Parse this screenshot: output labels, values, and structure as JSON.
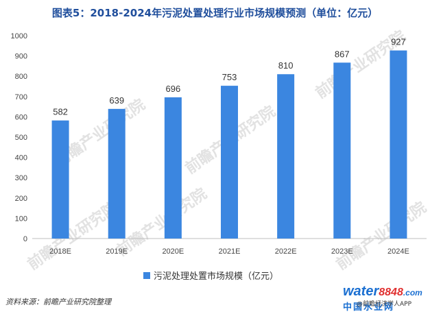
{
  "chart_data": {
    "type": "bar",
    "title": "图表5：2018-2024年污泥处置处理行业市场规模预测（单位：亿元）",
    "categories": [
      "2018E",
      "2019E",
      "2020E",
      "2021E",
      "2022E",
      "2023E",
      "2024E"
    ],
    "series": [
      {
        "name": "污泥处理处置市场规模（亿元）",
        "values": [
          582,
          639,
          696,
          753,
          810,
          867,
          927
        ]
      }
    ],
    "ylim": [
      0,
      1000
    ],
    "yticks": [
      0,
      100,
      200,
      300,
      400,
      500,
      600,
      700,
      800,
      900,
      1000
    ],
    "bar_color": "#3b86e0",
    "legend_position": "bottom",
    "grid": false
  },
  "source": "资料来源：前瞻产业研究院整理",
  "watermark": "前瞻产业研究院",
  "logo": {
    "brand": "water8848.com",
    "subtitle": "中国水业网",
    "credit": "@前瞻经济学人APP"
  }
}
